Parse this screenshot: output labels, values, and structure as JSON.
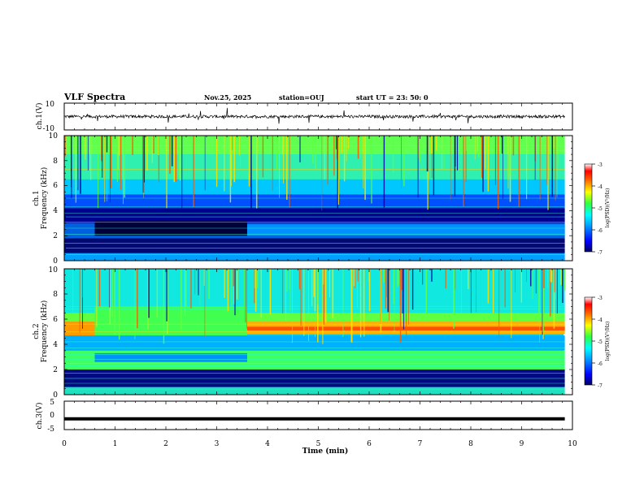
{
  "header": {
    "title": "VLF Spectra",
    "date": "Nov.25, 2025",
    "station": "station=OUJ",
    "start_ut": "start UT =  23: 50: 0"
  },
  "chart_data": [
    {
      "type": "line",
      "name": "ch1-waveform",
      "ylabel": "ch.1(V)",
      "ylim": [
        -10,
        10
      ],
      "yticks": [
        "10",
        "-10"
      ],
      "xlim": [
        0,
        10
      ],
      "baseline_value": 0,
      "description_values": "noisy waveform around 0 V with spikes"
    },
    {
      "type": "heatmap",
      "name": "ch1-spectrogram",
      "ylabel_line1": "ch.1",
      "ylabel_line2": "Frequency (kHz)",
      "ylim": [
        0,
        10
      ],
      "yticks": [
        "0",
        "2",
        "4",
        "6",
        "8",
        "10"
      ],
      "xlim": [
        0,
        9.85
      ],
      "colorbar": {
        "label": "log(PSD)(V²/Hz)",
        "range": [
          -7,
          -3
        ],
        "ticks": [
          "-3",
          "-4",
          "-5",
          "-6",
          "-7"
        ]
      }
    },
    {
      "type": "heatmap",
      "name": "ch2-spectrogram",
      "ylabel_line1": "ch.2",
      "ylabel_line2": "Frequency (kHz)",
      "ylim": [
        0,
        10
      ],
      "yticks": [
        "0",
        "2",
        "4",
        "6",
        "8",
        "10"
      ],
      "xlim": [
        0,
        9.85
      ],
      "colorbar": {
        "label": "log(PSD)(V²/Hz)",
        "range": [
          -7,
          -3
        ],
        "ticks": [
          "-3",
          "-4",
          "-5",
          "-6",
          "-7"
        ]
      }
    },
    {
      "type": "line",
      "name": "ch3-waveform",
      "ylabel": "ch.3(V)",
      "ylim": [
        -5,
        5
      ],
      "yticks": [
        "5",
        "0",
        "-5"
      ],
      "xlim": [
        0,
        10
      ],
      "constant_value": -1.2
    }
  ],
  "x_axis": {
    "label": "Time (min)",
    "ticks": [
      "0",
      "1",
      "2",
      "3",
      "4",
      "5",
      "6",
      "7",
      "8",
      "9",
      "10"
    ],
    "range": [
      0,
      10
    ]
  },
  "colors": {
    "background": "#ffffff",
    "axis": "#000000",
    "low": "#000080",
    "high": "#ff0000"
  }
}
